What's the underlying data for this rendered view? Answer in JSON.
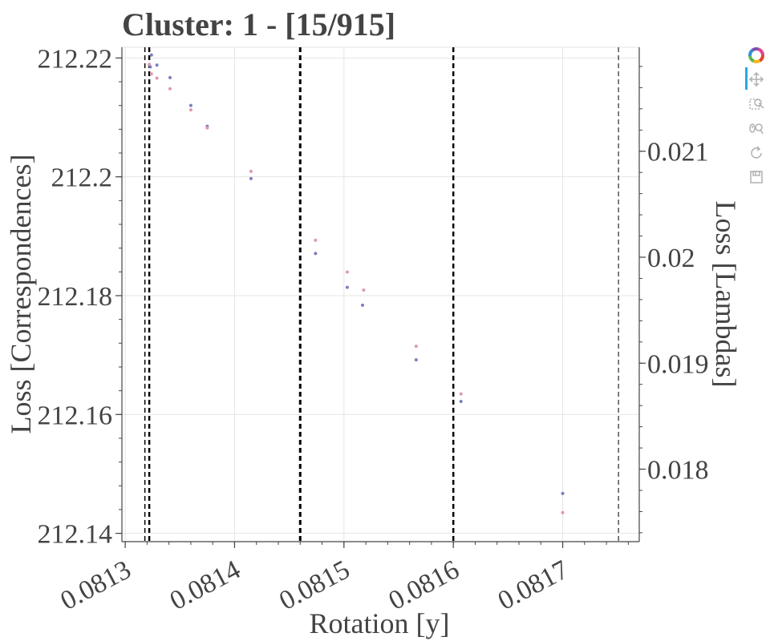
{
  "chart_data": {
    "type": "scatter",
    "title": "Cluster: 1 - [15/915]",
    "xlabel": "Rotation [y]",
    "ylabel": "Loss [Correspondences]",
    "y2label": "Loss [Lambdas]",
    "xlim": [
      0.081297,
      0.08177
    ],
    "ylim": [
      212.1386,
      212.2218
    ],
    "y2lim": [
      0.017316,
      0.021981
    ],
    "xticks": [
      "0.0813",
      "0.0814",
      "0.0815",
      "0.0816",
      "0.0817"
    ],
    "xtick_values": [
      0.0813,
      0.0814,
      0.0815,
      0.0816,
      0.0817
    ],
    "yticks": [
      "212.14",
      "212.16",
      "212.18",
      "212.2",
      "212.22"
    ],
    "ytick_values": [
      212.14,
      212.16,
      212.18,
      212.2,
      212.22
    ],
    "y2ticks": [
      "0.018",
      "0.019",
      "0.02",
      "0.021"
    ],
    "y2tick_values": [
      0.018,
      0.019,
      0.02,
      0.021
    ],
    "grid": true,
    "vlines": [
      {
        "x": 0.081318,
        "style": "dashed",
        "width": 1.5
      },
      {
        "x": 0.081322,
        "style": "dashed",
        "width": 2.5
      },
      {
        "x": 0.08146,
        "style": "dashed",
        "width": 3
      },
      {
        "x": 0.0816,
        "style": "dashed",
        "width": 2.5
      },
      {
        "x": 0.081751,
        "style": "dashed",
        "width": 1
      }
    ],
    "series": [
      {
        "axis": "left",
        "color": "#7a7fbf",
        "x": [
          0.081324,
          0.081323,
          0.081329,
          0.081341,
          0.08136,
          0.081375,
          0.081415,
          0.081474,
          0.081503,
          0.081517,
          0.081566,
          0.081607,
          0.0817
        ],
        "y": [
          212.2205,
          212.2185,
          212.2188,
          212.2167,
          212.212,
          212.2085,
          212.1997,
          212.1871,
          212.1814,
          212.1784,
          212.1692,
          212.1622,
          212.1467
        ]
      },
      {
        "axis": "right",
        "color": "#e098ae",
        "x": [
          0.081322,
          0.081324,
          0.081329,
          0.081341,
          0.08136,
          0.081375,
          0.081415,
          0.081474,
          0.081503,
          0.081518,
          0.081566,
          0.081607,
          0.0817
        ],
        "y": [
          0.02182,
          0.02173,
          0.02169,
          0.02159,
          0.02139,
          0.02122,
          0.02081,
          0.02016,
          0.01986,
          0.01969,
          0.01916,
          0.01871,
          0.01759
        ]
      }
    ]
  },
  "toolbar": {
    "items": [
      {
        "name": "bokeh-logo-icon"
      },
      {
        "name": "pan-icon"
      },
      {
        "name": "box-zoom-icon"
      },
      {
        "name": "wheel-zoom-icon"
      },
      {
        "name": "reset-icon"
      },
      {
        "name": "save-icon"
      }
    ]
  }
}
